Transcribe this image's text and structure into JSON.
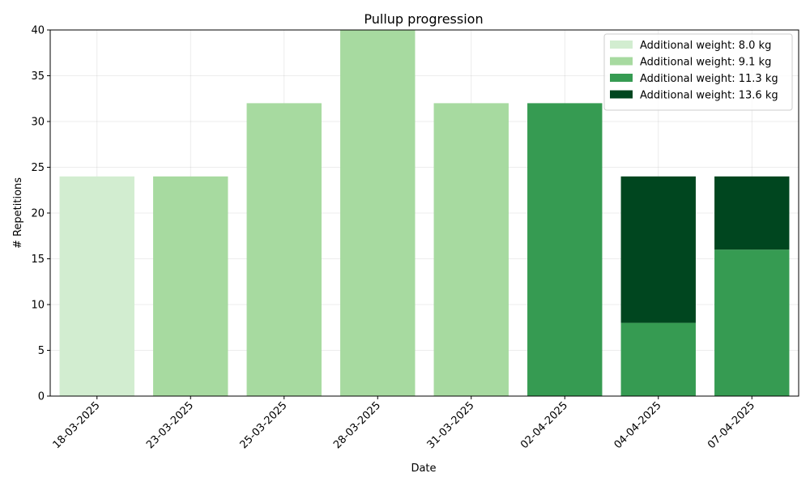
{
  "chart_data": {
    "type": "bar",
    "stacked": true,
    "title": "Pullup progression",
    "xlabel": "Date",
    "ylabel": "# Repetitions",
    "ylim": [
      0,
      40
    ],
    "yticks": [
      0,
      5,
      10,
      15,
      20,
      25,
      30,
      35,
      40
    ],
    "grid": true,
    "legend_position": "top-right",
    "categories": [
      "18-03-2025",
      "23-03-2025",
      "25-03-2025",
      "28-03-2025",
      "31-03-2025",
      "02-04-2025",
      "04-04-2025",
      "07-04-2025"
    ],
    "series": [
      {
        "name": "Additional weight: 8.0 kg",
        "color": "#d2edd0",
        "values": [
          24,
          0,
          0,
          0,
          0,
          0,
          0,
          0
        ]
      },
      {
        "name": "Additional weight: 9.1 kg",
        "color": "#a7daa0",
        "values": [
          0,
          24,
          32,
          40,
          32,
          0,
          0,
          0
        ]
      },
      {
        "name": "Additional weight: 11.3 kg",
        "color": "#369b52",
        "values": [
          0,
          0,
          0,
          0,
          0,
          32,
          8,
          16
        ]
      },
      {
        "name": "Additional weight: 13.6 kg",
        "color": "#00461f",
        "values": [
          0,
          0,
          0,
          0,
          0,
          0,
          16,
          8
        ]
      }
    ]
  }
}
